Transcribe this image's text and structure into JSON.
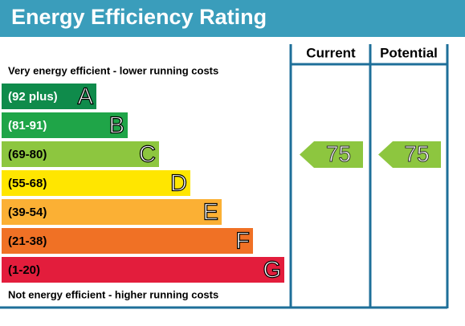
{
  "header": {
    "title": "Energy Efficiency Rating"
  },
  "top_label": "Very energy efficient - lower running costs",
  "bottom_label": "Not energy efficient - higher running costs",
  "bands": [
    {
      "range": "(92 plus)",
      "letter": "A"
    },
    {
      "range": "(81-91)",
      "letter": "B"
    },
    {
      "range": "(69-80)",
      "letter": "C"
    },
    {
      "range": "(55-68)",
      "letter": "D"
    },
    {
      "range": "(39-54)",
      "letter": "E"
    },
    {
      "range": "(21-38)",
      "letter": "F"
    },
    {
      "range": "(1-20)",
      "letter": "G"
    }
  ],
  "columns": [
    {
      "header": "Current",
      "value": "75"
    },
    {
      "header": "Potential",
      "value": "75"
    }
  ]
}
